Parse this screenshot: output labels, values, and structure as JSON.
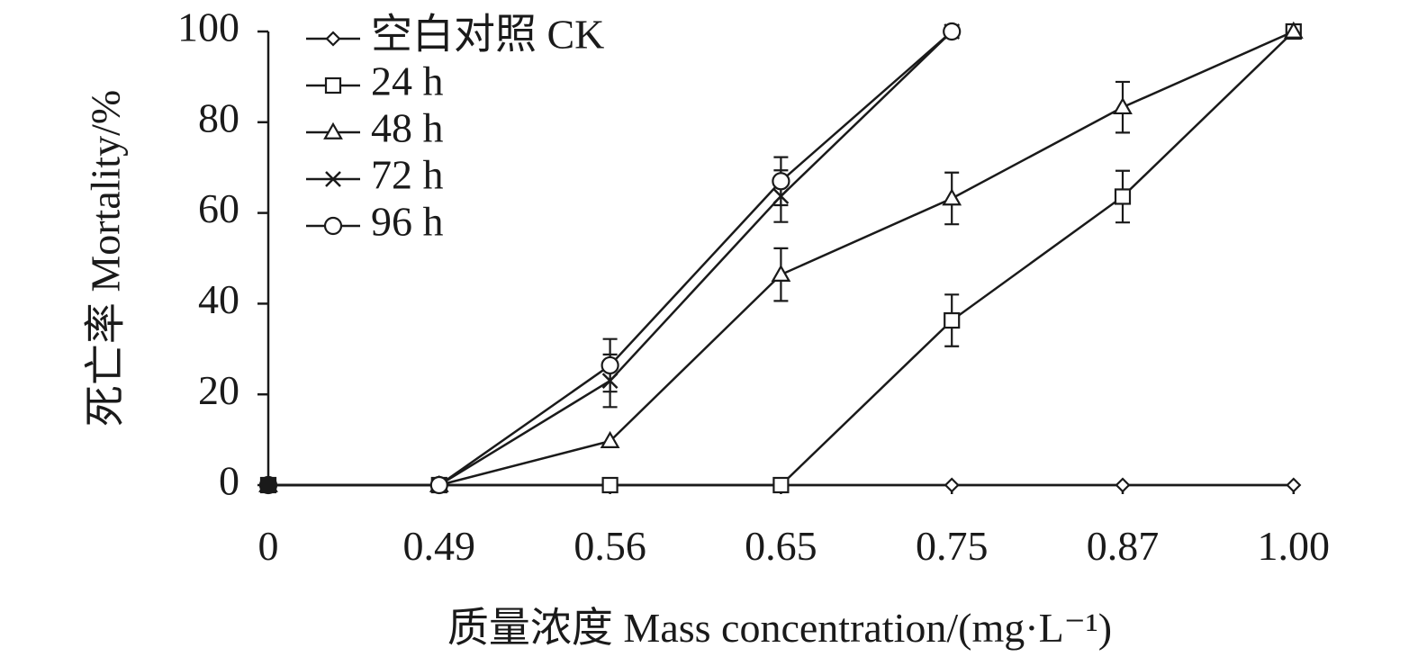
{
  "chart_data": {
    "type": "line",
    "title": "",
    "xlabel": "质量浓度 Mass concentration/(mg·L⁻¹)",
    "ylabel": "死亡率 Mortality/%",
    "categories": [
      "0",
      "0.49",
      "0.56",
      "0.65",
      "0.75",
      "0.87",
      "1.00"
    ],
    "ylim": [
      0,
      100
    ],
    "yticks": [
      0,
      20,
      40,
      60,
      80,
      100
    ],
    "legend_position": "top-left",
    "series": [
      {
        "name": "空白对照 CK",
        "marker": "diamond",
        "values": [
          0,
          0,
          0,
          0,
          0,
          0,
          0
        ],
        "errors": [
          0,
          0,
          0,
          0,
          0,
          0,
          0
        ]
      },
      {
        "name": "24 h",
        "marker": "square",
        "values": [
          0,
          0,
          0,
          0,
          36.3,
          63.6,
          100
        ],
        "errors": [
          0,
          0,
          0,
          0,
          5.7,
          5.7,
          0
        ]
      },
      {
        "name": "48 h",
        "marker": "triangle",
        "values": [
          0,
          0,
          9.7,
          46.4,
          63.2,
          83.3,
          100
        ],
        "errors": [
          0,
          0,
          0,
          5.8,
          5.7,
          5.6,
          0
        ]
      },
      {
        "name": "72 h",
        "marker": "cross",
        "values": [
          0,
          0,
          23,
          63.7,
          100,
          null,
          null
        ],
        "errors": [
          0,
          0,
          5.8,
          5.7,
          0,
          0,
          0
        ]
      },
      {
        "name": "96 h",
        "marker": "circle",
        "values": [
          0,
          0,
          26.4,
          67,
          100,
          null,
          null
        ],
        "errors": [
          0,
          0,
          5.8,
          5.3,
          0,
          0,
          0
        ]
      }
    ]
  }
}
